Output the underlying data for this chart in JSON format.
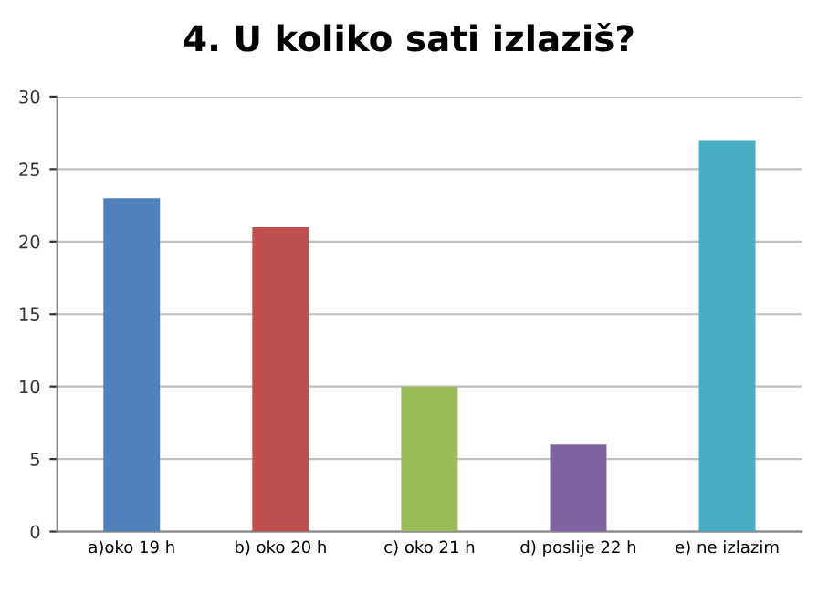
{
  "chart_data": {
    "type": "bar",
    "title": "4. U koliko sati izlaziš?",
    "categories": [
      "a)oko 19 h",
      "b) oko 20 h",
      "c) oko 21 h",
      "d) poslije 22 h",
      "e) ne izlazim"
    ],
    "values": [
      23,
      21,
      10,
      6,
      27
    ],
    "colors": [
      "#4f81bd",
      "#c0504d",
      "#9bbb59",
      "#8064a2",
      "#4bacc6"
    ],
    "ylim": [
      0,
      30
    ],
    "yticks": [
      0,
      5,
      10,
      15,
      20,
      25,
      30
    ],
    "grid": "y",
    "legend": false
  }
}
